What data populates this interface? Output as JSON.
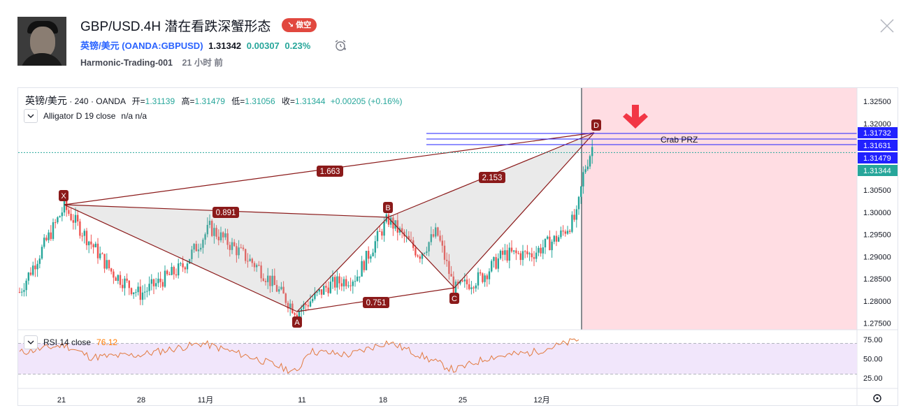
{
  "header": {
    "title": "GBP/USD.4H 潜在看跌深蟹形态",
    "badge": "↘ 做空",
    "symbol_name": "英镑/美元",
    "symbol_code": "(OANDA:GBPUSD)",
    "price": "1.31342",
    "change": "0.00307",
    "change_pct": "0.23%",
    "author": "Harmonic-Trading-001",
    "time_ago": "21 小时 前"
  },
  "legend": {
    "symbol": "英镑/美元",
    "interval": "240",
    "broker": "OANDA",
    "open_label": "开=",
    "open": "1.31139",
    "high_label": "高=",
    "high": "1.31479",
    "low_label": "低=",
    "low": "1.31056",
    "close_label": "收=",
    "close": "1.31344",
    "change": "+0.00205 (+0.16%)",
    "indicator": "Alligator D 19 close",
    "indicator_vals": "n/a  n/a"
  },
  "rsi": {
    "label": "RSI 14 close",
    "value": "76.12",
    "ticks": [
      "75.00",
      "50.00",
      "25.00"
    ]
  },
  "price_axis": {
    "ticks": [
      "1.32500",
      "1.32000",
      "1.30500",
      "1.30000",
      "1.29500",
      "1.29000",
      "1.28500",
      "1.28000",
      "1.27500"
    ],
    "labels": [
      {
        "text": "1.31732",
        "bg": "#2121ff"
      },
      {
        "text": "1.31631",
        "bg": "#2121ff"
      },
      {
        "text": "1.31479",
        "bg": "#2121ff"
      },
      {
        "text": "1.31344",
        "bg": "#26a69a"
      }
    ]
  },
  "time_axis": [
    "21",
    "28",
    "11月",
    "11",
    "18",
    "25",
    "12月"
  ],
  "pattern": {
    "points": [
      "X",
      "A",
      "B",
      "C",
      "D"
    ],
    "ratios": [
      "1.663",
      "0.891",
      "2.153",
      "0.751"
    ],
    "zone_label": "Crab PRZ"
  },
  "colors": {
    "up": "#26a69a",
    "down": "#ef5350",
    "pattern": "#8b1a1a",
    "zone": "#ffdde3",
    "rsi": "#e27a3f",
    "rsi_band": "#f1e6fb"
  }
}
